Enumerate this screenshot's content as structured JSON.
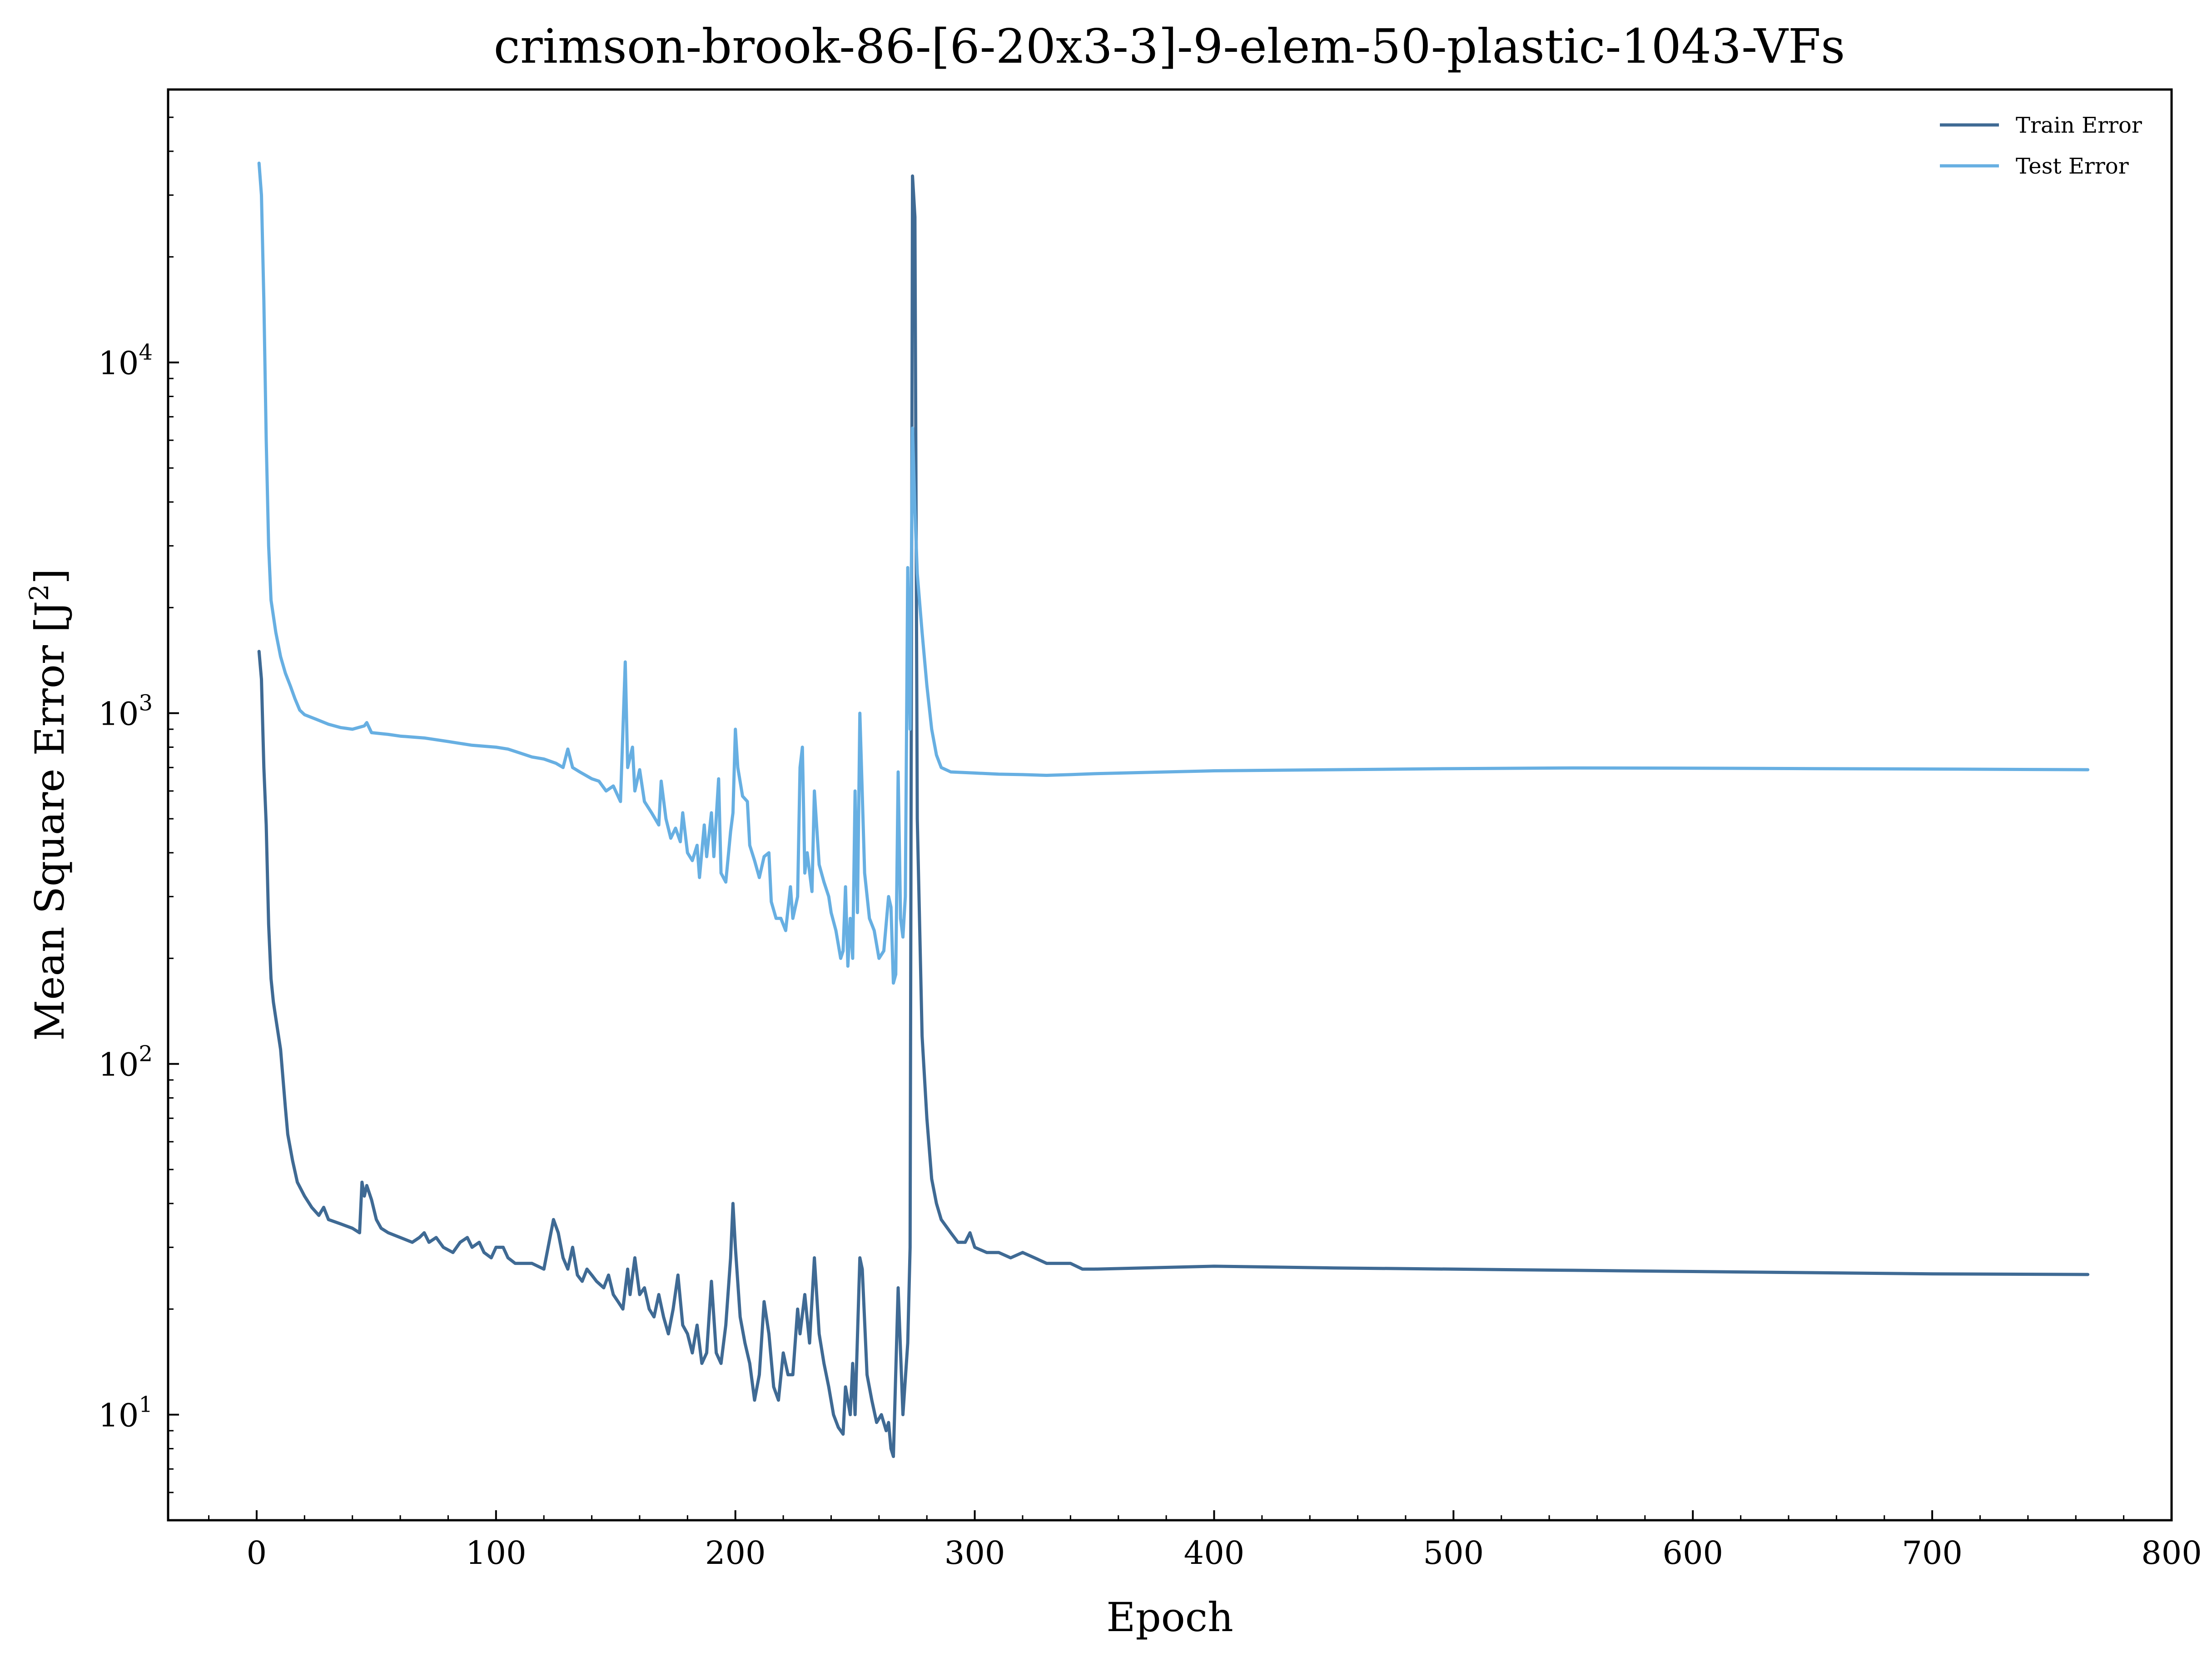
{
  "chart_data": {
    "type": "line",
    "title": "crimson-brook-86-[6-20x3-3]-9-elem-50-plastic-1043-VFs",
    "xlabel": "Epoch",
    "ylabel": "Mean Square Error [J²]",
    "ylabel_base": "Mean Square Error [J",
    "ylabel_sup": "2",
    "ylabel_end": "]",
    "yscale": "log",
    "xlim": [
      -37,
      800
    ],
    "ylim": [
      5,
      60000
    ],
    "grid": false,
    "legend_position": "top-right",
    "x_ticks": [
      0,
      100,
      200,
      300,
      400,
      500,
      600,
      700,
      800
    ],
    "x_tick_labels": [
      "0",
      "100",
      "200",
      "300",
      "400",
      "500",
      "600",
      "700",
      "800"
    ],
    "y_ticks": [
      10,
      100,
      1000,
      10000
    ],
    "y_tick_labels": [
      {
        "base": "10",
        "exp": "1"
      },
      {
        "base": "10",
        "exp": "2"
      },
      {
        "base": "10",
        "exp": "3"
      },
      {
        "base": "10",
        "exp": "4"
      }
    ],
    "series": [
      {
        "name": "Train Error",
        "color": "#3f6a94",
        "points": [
          [
            1,
            1500
          ],
          [
            2,
            1250
          ],
          [
            3,
            700
          ],
          [
            4,
            480
          ],
          [
            5,
            250
          ],
          [
            6,
            175
          ],
          [
            7,
            150
          ],
          [
            8,
            135
          ],
          [
            10,
            110
          ],
          [
            12,
            75
          ],
          [
            13,
            63
          ],
          [
            15,
            53
          ],
          [
            17,
            46
          ],
          [
            20,
            42
          ],
          [
            23,
            39
          ],
          [
            26,
            37
          ],
          [
            28,
            39
          ],
          [
            30,
            36
          ],
          [
            35,
            35
          ],
          [
            40,
            34
          ],
          [
            43,
            33
          ],
          [
            44,
            46
          ],
          [
            45,
            42
          ],
          [
            46,
            45
          ],
          [
            48,
            41
          ],
          [
            50,
            36
          ],
          [
            52,
            34
          ],
          [
            55,
            33
          ],
          [
            60,
            32
          ],
          [
            65,
            31
          ],
          [
            68,
            32
          ],
          [
            70,
            33
          ],
          [
            72,
            31
          ],
          [
            75,
            32
          ],
          [
            78,
            30
          ],
          [
            82,
            29
          ],
          [
            85,
            31
          ],
          [
            88,
            32
          ],
          [
            90,
            30
          ],
          [
            93,
            31
          ],
          [
            95,
            29
          ],
          [
            98,
            28
          ],
          [
            100,
            30
          ],
          [
            103,
            30
          ],
          [
            105,
            28
          ],
          [
            108,
            27
          ],
          [
            110,
            27
          ],
          [
            115,
            27
          ],
          [
            120,
            26
          ],
          [
            124,
            36
          ],
          [
            126,
            33
          ],
          [
            128,
            28
          ],
          [
            130,
            26
          ],
          [
            132,
            30
          ],
          [
            134,
            25
          ],
          [
            136,
            24
          ],
          [
            138,
            26
          ],
          [
            140,
            25
          ],
          [
            142,
            24
          ],
          [
            145,
            23
          ],
          [
            147,
            25
          ],
          [
            149,
            22
          ],
          [
            151,
            21
          ],
          [
            153,
            20
          ],
          [
            155,
            26
          ],
          [
            156,
            22
          ],
          [
            158,
            28
          ],
          [
            160,
            22
          ],
          [
            162,
            23
          ],
          [
            164,
            20
          ],
          [
            166,
            19
          ],
          [
            168,
            22
          ],
          [
            170,
            19
          ],
          [
            172,
            17
          ],
          [
            174,
            20
          ],
          [
            176,
            25
          ],
          [
            178,
            18
          ],
          [
            180,
            17
          ],
          [
            182,
            15
          ],
          [
            184,
            18
          ],
          [
            186,
            14
          ],
          [
            188,
            15
          ],
          [
            190,
            24
          ],
          [
            192,
            15
          ],
          [
            194,
            14
          ],
          [
            196,
            18
          ],
          [
            198,
            28
          ],
          [
            199,
            40
          ],
          [
            200,
            30
          ],
          [
            202,
            19
          ],
          [
            204,
            16
          ],
          [
            206,
            14
          ],
          [
            208,
            11
          ],
          [
            210,
            13
          ],
          [
            212,
            21
          ],
          [
            214,
            17
          ],
          [
            216,
            12
          ],
          [
            218,
            11
          ],
          [
            220,
            15
          ],
          [
            222,
            13
          ],
          [
            224,
            13
          ],
          [
            226,
            20
          ],
          [
            227,
            17
          ],
          [
            229,
            22
          ],
          [
            231,
            16
          ],
          [
            233,
            28
          ],
          [
            235,
            17
          ],
          [
            237,
            14
          ],
          [
            239,
            12
          ],
          [
            241,
            10
          ],
          [
            243,
            9.2
          ],
          [
            245,
            8.8
          ],
          [
            246,
            12
          ],
          [
            248,
            10
          ],
          [
            249,
            14
          ],
          [
            250,
            10
          ],
          [
            252,
            28
          ],
          [
            253,
            26
          ],
          [
            255,
            13
          ],
          [
            257,
            11
          ],
          [
            259,
            9.5
          ],
          [
            261,
            10
          ],
          [
            263,
            9
          ],
          [
            264,
            9.5
          ],
          [
            265,
            8
          ],
          [
            266,
            7.6
          ],
          [
            268,
            23
          ],
          [
            270,
            10
          ],
          [
            272,
            16
          ],
          [
            273,
            30
          ],
          [
            274,
            34000
          ],
          [
            275,
            26000
          ],
          [
            276,
            500
          ],
          [
            278,
            120
          ],
          [
            280,
            70
          ],
          [
            282,
            47
          ],
          [
            284,
            40
          ],
          [
            286,
            36
          ],
          [
            290,
            33
          ],
          [
            293,
            31
          ],
          [
            296,
            31
          ],
          [
            298,
            33
          ],
          [
            300,
            30
          ],
          [
            305,
            29
          ],
          [
            310,
            29
          ],
          [
            315,
            28
          ],
          [
            320,
            29
          ],
          [
            325,
            28
          ],
          [
            330,
            27
          ],
          [
            340,
            27
          ],
          [
            345,
            26
          ],
          [
            350,
            26
          ],
          [
            400,
            26.5
          ],
          [
            450,
            26.2
          ],
          [
            500,
            26
          ],
          [
            550,
            25.8
          ],
          [
            600,
            25.6
          ],
          [
            650,
            25.4
          ],
          [
            700,
            25.2
          ],
          [
            765,
            25.1
          ]
        ]
      },
      {
        "name": "Test Error",
        "color": "#67afe2",
        "points": [
          [
            1,
            37000
          ],
          [
            2,
            30000
          ],
          [
            3,
            15000
          ],
          [
            4,
            6000
          ],
          [
            5,
            3000
          ],
          [
            6,
            2100
          ],
          [
            8,
            1700
          ],
          [
            10,
            1450
          ],
          [
            12,
            1300
          ],
          [
            14,
            1200
          ],
          [
            16,
            1100
          ],
          [
            18,
            1020
          ],
          [
            20,
            990
          ],
          [
            25,
            960
          ],
          [
            30,
            930
          ],
          [
            35,
            910
          ],
          [
            40,
            900
          ],
          [
            45,
            920
          ],
          [
            46,
            940
          ],
          [
            48,
            880
          ],
          [
            55,
            870
          ],
          [
            60,
            860
          ],
          [
            70,
            850
          ],
          [
            80,
            830
          ],
          [
            90,
            810
          ],
          [
            100,
            800
          ],
          [
            105,
            790
          ],
          [
            110,
            770
          ],
          [
            115,
            750
          ],
          [
            120,
            740
          ],
          [
            125,
            720
          ],
          [
            128,
            700
          ],
          [
            130,
            790
          ],
          [
            132,
            700
          ],
          [
            135,
            680
          ],
          [
            140,
            650
          ],
          [
            143,
            640
          ],
          [
            146,
            600
          ],
          [
            149,
            620
          ],
          [
            152,
            560
          ],
          [
            154,
            1400
          ],
          [
            155,
            700
          ],
          [
            157,
            800
          ],
          [
            158,
            600
          ],
          [
            160,
            690
          ],
          [
            162,
            560
          ],
          [
            165,
            520
          ],
          [
            168,
            480
          ],
          [
            169,
            640
          ],
          [
            171,
            500
          ],
          [
            173,
            440
          ],
          [
            175,
            470
          ],
          [
            177,
            430
          ],
          [
            178,
            520
          ],
          [
            180,
            400
          ],
          [
            182,
            380
          ],
          [
            184,
            420
          ],
          [
            185,
            340
          ],
          [
            187,
            480
          ],
          [
            188,
            390
          ],
          [
            190,
            520
          ],
          [
            191,
            390
          ],
          [
            193,
            650
          ],
          [
            194,
            350
          ],
          [
            196,
            330
          ],
          [
            198,
            460
          ],
          [
            199,
            520
          ],
          [
            200,
            900
          ],
          [
            201,
            700
          ],
          [
            203,
            580
          ],
          [
            205,
            560
          ],
          [
            206,
            420
          ],
          [
            208,
            380
          ],
          [
            210,
            340
          ],
          [
            212,
            390
          ],
          [
            214,
            400
          ],
          [
            215,
            290
          ],
          [
            217,
            260
          ],
          [
            219,
            260
          ],
          [
            221,
            240
          ],
          [
            223,
            320
          ],
          [
            224,
            260
          ],
          [
            226,
            300
          ],
          [
            227,
            700
          ],
          [
            228,
            800
          ],
          [
            229,
            350
          ],
          [
            230,
            400
          ],
          [
            232,
            310
          ],
          [
            233,
            600
          ],
          [
            235,
            370
          ],
          [
            237,
            330
          ],
          [
            239,
            300
          ],
          [
            240,
            270
          ],
          [
            242,
            240
          ],
          [
            244,
            200
          ],
          [
            245,
            210
          ],
          [
            246,
            320
          ],
          [
            247,
            190
          ],
          [
            248,
            260
          ],
          [
            249,
            200
          ],
          [
            250,
            600
          ],
          [
            251,
            270
          ],
          [
            252,
            1000
          ],
          [
            254,
            350
          ],
          [
            256,
            260
          ],
          [
            258,
            240
          ],
          [
            260,
            200
          ],
          [
            262,
            210
          ],
          [
            264,
            300
          ],
          [
            265,
            280
          ],
          [
            266,
            170
          ],
          [
            267,
            180
          ],
          [
            268,
            680
          ],
          [
            269,
            260
          ],
          [
            270,
            230
          ],
          [
            271,
            300
          ],
          [
            272,
            2600
          ],
          [
            273,
            900
          ],
          [
            274,
            6500
          ],
          [
            275,
            3800
          ],
          [
            276,
            2500
          ],
          [
            278,
            1700
          ],
          [
            280,
            1200
          ],
          [
            282,
            900
          ],
          [
            284,
            760
          ],
          [
            286,
            700
          ],
          [
            290,
            680
          ],
          [
            300,
            675
          ],
          [
            310,
            670
          ],
          [
            320,
            668
          ],
          [
            330,
            665
          ],
          [
            340,
            668
          ],
          [
            350,
            672
          ],
          [
            380,
            680
          ],
          [
            400,
            685
          ],
          [
            450,
            690
          ],
          [
            500,
            695
          ],
          [
            550,
            698
          ],
          [
            600,
            697
          ],
          [
            650,
            695
          ],
          [
            700,
            693
          ],
          [
            765,
            690
          ]
        ]
      }
    ]
  }
}
